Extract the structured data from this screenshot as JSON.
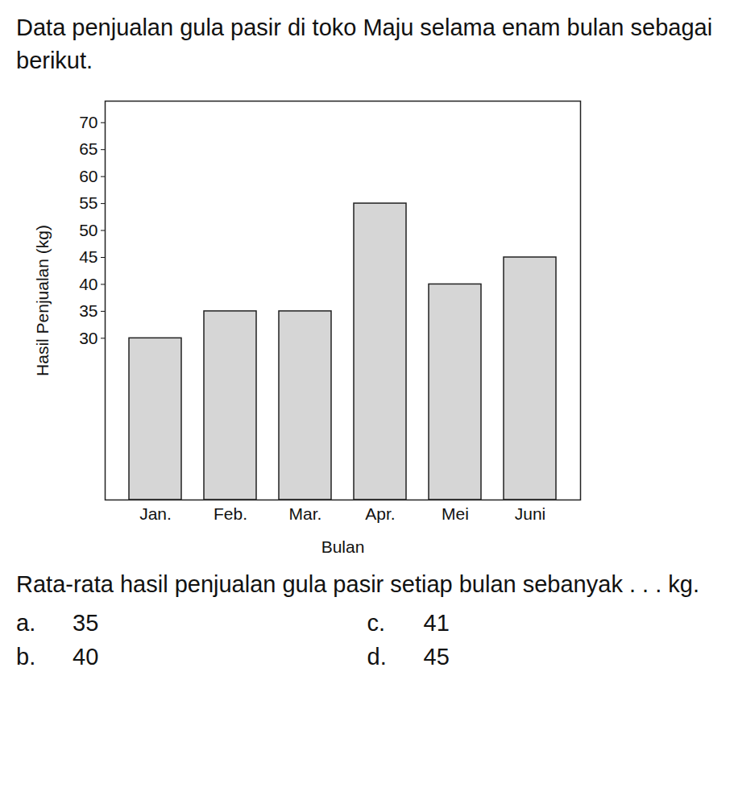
{
  "question": {
    "intro": "Data penjualan gula pasir di toko Maju selama enam bulan sebagai berikut.",
    "prompt": "Rata-rata hasil penjualan gula pasir setiap bulan sebanyak . . . kg.",
    "options": [
      {
        "key": "a.",
        "text": "35"
      },
      {
        "key": "b.",
        "text": "40"
      },
      {
        "key": "c.",
        "text": "41"
      },
      {
        "key": "d.",
        "text": "45"
      }
    ]
  },
  "chart_data": {
    "type": "bar",
    "x_label": "Bulan",
    "y_label": "Hasil Penjualan (kg)",
    "categories": [
      "Jan.",
      "Feb.",
      "Mar.",
      "Apr.",
      "Mei",
      "Juni"
    ],
    "values": [
      30,
      35,
      35,
      55,
      40,
      45
    ],
    "color": "#d6d6d6",
    "ylim": [
      0,
      74
    ],
    "yticks": [
      30,
      35,
      40,
      45,
      50,
      55,
      60,
      65,
      70
    ],
    "grid": false
  }
}
